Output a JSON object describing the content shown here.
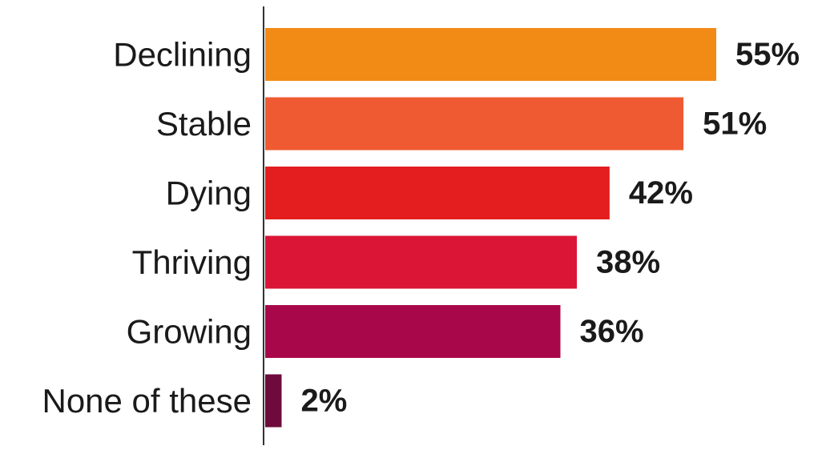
{
  "chart_data": {
    "type": "bar",
    "orientation": "horizontal",
    "title": "",
    "xlabel": "",
    "ylabel": "",
    "categories": [
      "Declining",
      "Stable",
      "Dying",
      "Thriving",
      "Growing",
      "None of these"
    ],
    "values": [
      55,
      51,
      42,
      38,
      36,
      2
    ],
    "value_labels": [
      "55%",
      "51%",
      "42%",
      "38%",
      "36%",
      "2%"
    ],
    "xlim": [
      0,
      60
    ],
    "grid": false,
    "legend": "none",
    "bar_colors": [
      "#F28A16",
      "#EF5A32",
      "#E41E1E",
      "#DB1536",
      "#A8084A",
      "#6E0B3C"
    ]
  }
}
